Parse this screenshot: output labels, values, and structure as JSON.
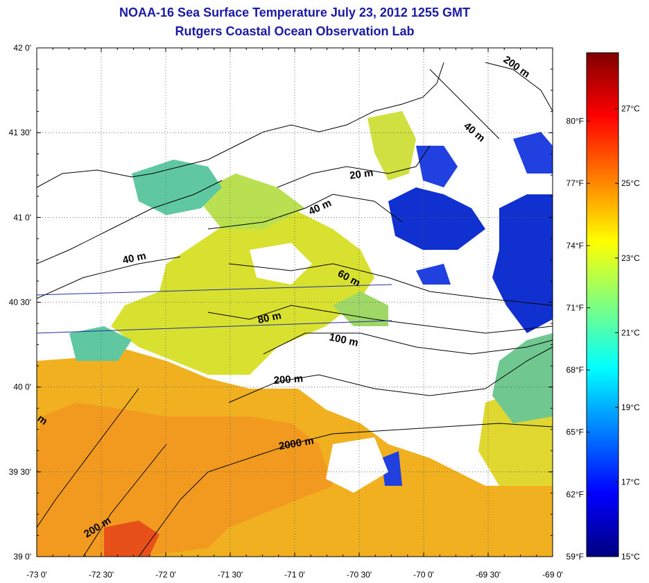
{
  "title": "NOAA-16 Sea Surface Temperature July 23, 2012 1255 GMT",
  "subtitle": "Rutgers Coastal Ocean Observation Lab",
  "map": {
    "lon_ticks": [
      "-73 0'",
      "-72 30'",
      "-72 0'",
      "-71 30'",
      "-71 0'",
      "-70 30'",
      "-70 0'",
      "-69 30'",
      "-69 0'"
    ],
    "lat_ticks": [
      "42 0'",
      "41 30'",
      "41 0'",
      "40 30'",
      "40 0'",
      "39 30'",
      "39 0'"
    ],
    "lon_range": [
      -73,
      -69
    ],
    "lat_range": [
      39,
      42
    ],
    "grid": true
  },
  "contours": [
    {
      "label": "20 m"
    },
    {
      "label": "40 m"
    },
    {
      "label": "40 m"
    },
    {
      "label": "40 m"
    },
    {
      "label": "60 m"
    },
    {
      "label": "80 m"
    },
    {
      "label": "100 m"
    },
    {
      "label": "200 m"
    },
    {
      "label": "200 m"
    },
    {
      "label": "200 m"
    },
    {
      "label": "2000 m"
    },
    {
      "label": "m"
    }
  ],
  "colorbar": {
    "fahrenheit": [
      "80°F",
      "77°F",
      "74°F",
      "71°F",
      "68°F",
      "65°F",
      "62°F",
      "59°F"
    ],
    "celsius": [
      "27°C",
      "25°C",
      "23°C",
      "21°C",
      "19°C",
      "17°C",
      "15°C"
    ],
    "range_c": [
      15,
      28.5
    ],
    "colors": [
      "#00007f",
      "#0000ff",
      "#007fff",
      "#00ffff",
      "#7fff7f",
      "#ffff00",
      "#ff7f00",
      "#ff0000",
      "#7f0000"
    ]
  },
  "colors": {
    "title": "#1a1aa8",
    "warm_water": "#f0b020",
    "mid_water": "#d8e030",
    "cool_water": "#60c8a0",
    "cold_water": "#1030d0",
    "track_line": "#2030a0"
  }
}
